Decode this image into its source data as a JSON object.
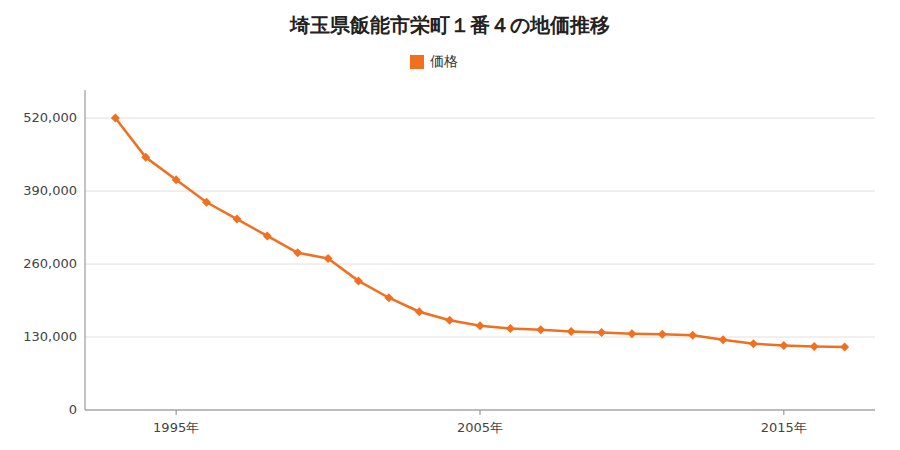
{
  "chart_data": {
    "type": "line",
    "title": "埼玉県飯能市栄町１番４の地価推移",
    "x": [
      1993,
      1994,
      1995,
      1996,
      1997,
      1998,
      1999,
      2000,
      2001,
      2002,
      2003,
      2004,
      2005,
      2006,
      2007,
      2008,
      2009,
      2010,
      2011,
      2012,
      2013,
      2014,
      2015,
      2016,
      2017
    ],
    "series": [
      {
        "name": "価格",
        "color": "#f07020",
        "marker": "diamond",
        "values": [
          520000,
          450000,
          410000,
          370000,
          340000,
          310000,
          280000,
          270000,
          230000,
          200000,
          175000,
          160000,
          150000,
          145000,
          143000,
          140000,
          138000,
          136000,
          135000,
          133000,
          125000,
          118000,
          115000,
          113000,
          112000
        ]
      }
    ],
    "xlim": [
      1992,
      2018
    ],
    "xticks": [
      {
        "value": 1995,
        "label": "1995年"
      },
      {
        "value": 2005,
        "label": "2005年"
      },
      {
        "value": 2015,
        "label": "2015年"
      }
    ],
    "ylim": [
      0,
      570000
    ],
    "yticks": [
      0,
      {
        "value": 130000,
        "label": "130,000"
      },
      {
        "value": 260000,
        "label": "260,000"
      },
      {
        "value": 390000,
        "label": "390,000"
      },
      {
        "value": 520000,
        "label": "520,000"
      }
    ],
    "grid": "y",
    "legend": "top"
  }
}
